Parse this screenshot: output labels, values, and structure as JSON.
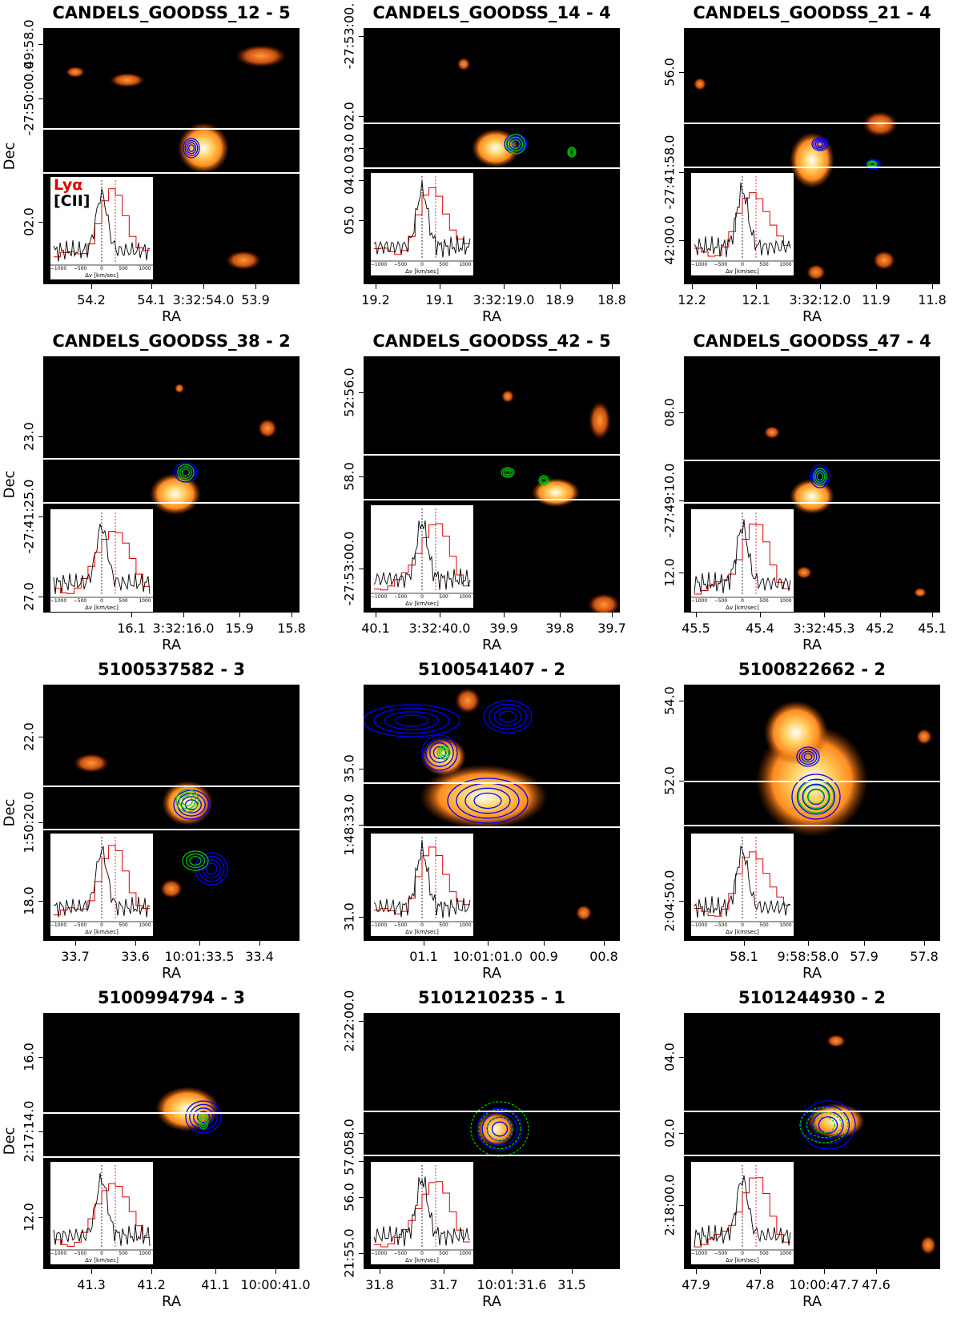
{
  "figure": {
    "xlabel": "RA",
    "ylabel": "Dec",
    "legend": {
      "lya": "Lyα",
      "cii": "[CII]"
    },
    "inset_xlabel": "Δv [km/sec]",
    "inset_ticks": [
      "−1000",
      "−500",
      "0",
      "500",
      "1000"
    ]
  },
  "colors": {
    "lya_spectrum": "#e00000",
    "cii_spectrum": "#000000",
    "contour_blue": "#0000ff",
    "contour_green": "#00cc00",
    "background": "#000000",
    "slit_lines": "#ffffff"
  },
  "panels": [
    {
      "title": "CANDELS_GOODSS_12 - 5",
      "xticks": [
        "54.2",
        "54.1",
        "3:32:54.0",
        "53.9"
      ],
      "yticks": [
        "49:58.0",
        "-27:50:00.0",
        "02.0"
      ]
    },
    {
      "title": "CANDELS_GOODSS_14 - 4",
      "xticks": [
        "19.2",
        "19.1",
        "3:32:19.0",
        "18.9",
        "18.8"
      ],
      "yticks": [
        "-27:53:00.",
        "02.0",
        "03.0",
        "04.0",
        "05.0"
      ]
    },
    {
      "title": "CANDELS_GOODSS_21 - 4",
      "xticks": [
        "12.2",
        "12.1",
        "3:32:12.0",
        "11.9",
        "11.8"
      ],
      "yticks": [
        "56.0",
        "-27:41:58.0",
        "42:00.0"
      ]
    },
    {
      "title": "CANDELS_GOODSS_38 - 2",
      "xticks": [
        "16.1",
        "3:32:16.0",
        "15.9",
        "15.8"
      ],
      "yticks": [
        "23.0",
        "-27:41:25.0",
        "27.0"
      ]
    },
    {
      "title": "CANDELS_GOODSS_42 - 5",
      "xticks": [
        "40.1",
        "3:32:40.0",
        "39.9",
        "39.8",
        "39.7"
      ],
      "yticks": [
        "52:56.0",
        "58.0",
        "-27:53:00.0"
      ]
    },
    {
      "title": "CANDELS_GOODSS_47 - 4",
      "xticks": [
        "45.5",
        "45.4",
        "3:32:45.3",
        "45.2",
        "45.1"
      ],
      "yticks": [
        "08.0",
        "-27:49:10.0",
        "12.0"
      ]
    },
    {
      "title": "5100537582 - 3",
      "xticks": [
        "33.7",
        "33.6",
        "10:01:33.5",
        "33.4"
      ],
      "yticks": [
        "22.0",
        "1:50:20.0",
        "18.0"
      ]
    },
    {
      "title": "5100541407 - 2",
      "xticks": [
        "01.1",
        "10:01:01.0",
        "00.9",
        "00.8"
      ],
      "yticks": [
        "35.0",
        "1:48:33.0",
        "31.0"
      ]
    },
    {
      "title": "5100822662 - 2",
      "xticks": [
        "58.1",
        "9:58:58.0",
        "57.9",
        "57.8"
      ],
      "yticks": [
        "54.0",
        "52.0",
        "2:04:50.0"
      ]
    },
    {
      "title": "5100994794 - 3",
      "xticks": [
        "41.3",
        "41.2",
        "41.1",
        "10:00:41.0"
      ],
      "yticks": [
        "16.0",
        "2:17:14.0",
        "12.0"
      ]
    },
    {
      "title": "5101210235 - 1",
      "xticks": [
        "31.8",
        "31.7",
        "10:01:31.6",
        "31.5"
      ],
      "yticks": [
        "2:22:00.0",
        "58.0",
        "57.0",
        "56.0",
        "21:55.0"
      ]
    },
    {
      "title": "5101244930 - 2",
      "xticks": [
        "47.9",
        "47.8",
        "10:00:47.7",
        "47.6"
      ],
      "yticks": [
        "04.0",
        "02.0",
        "2:18:00.0"
      ]
    }
  ]
}
